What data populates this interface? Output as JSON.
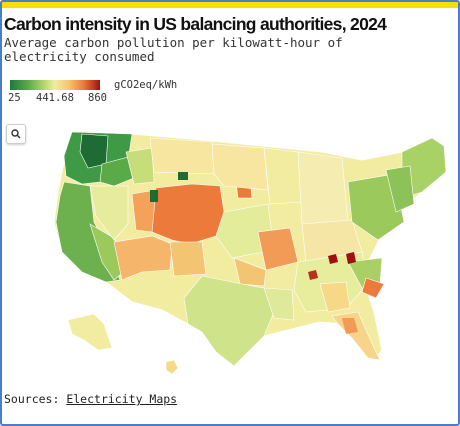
{
  "title": "Carbon intensity in US balancing authorities, 2024",
  "subtitle": "Average carbon pollution per kilowatt-hour of electricity consumed",
  "legend": {
    "unit": "gCO2eq/kWh",
    "min": "25",
    "mid": "441.68",
    "max": "860",
    "colors": [
      "#1d7a3a",
      "#5aaa48",
      "#b6d86c",
      "#f2eca0",
      "#f8c66c",
      "#ec7a3a",
      "#a01010"
    ]
  },
  "controls": {
    "search_icon": "search-icon"
  },
  "sources": {
    "label": "Sources:",
    "link": "Electricity Maps"
  }
}
